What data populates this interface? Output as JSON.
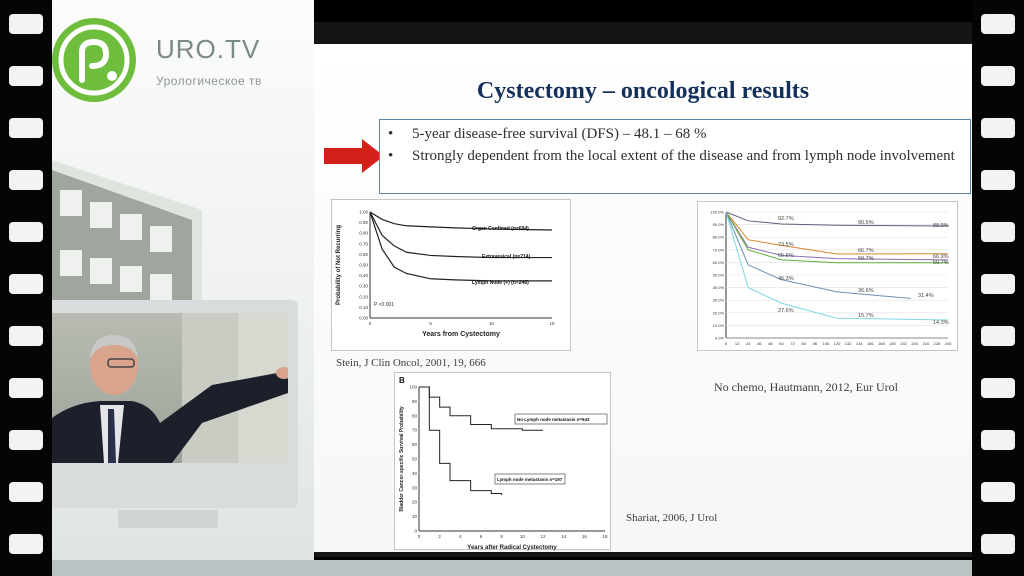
{
  "brand": {
    "name": "URO.TV",
    "tagline": "Урологическое тв"
  },
  "slide": {
    "title": "Cystectomy – oncological results",
    "bullets": [
      "5-year disease-free survival (DFS) – 48.1 – 68 %",
      "Strongly dependent from the local extent of the disease and from lymph node involvement"
    ],
    "bullet_symbol": "•",
    "captions": {
      "stein": "Stein, J Clin Oncol, 2001, 19, 666",
      "hautmann": "No chemo, Hautmann, 2012, Eur Urol",
      "shariat": "Shariat, 2006, J Urol"
    }
  },
  "colors": {
    "logo": "#6fbd3c",
    "title": "#15305a",
    "arrow": "#d32019",
    "box_border": "#5a86a6"
  },
  "chart_data": [
    {
      "type": "line",
      "xlabel": "Years from Cystectomy",
      "ylabel": "Probability of Not Recurring",
      "xlim": [
        0,
        15
      ],
      "ylim": [
        0,
        1.0
      ],
      "x_ticks": [
        "0",
        "5",
        "10",
        "15"
      ],
      "y_ticks": [
        "0.00",
        "0.10",
        "0.20",
        "0.30",
        "0.40",
        "0.50",
        "0.60",
        "0.70",
        "0.80",
        "0.90",
        "1.00"
      ],
      "annotation": "P <0.001",
      "series": [
        {
          "name": "Organ Confined (n=694)",
          "x": [
            0,
            1,
            2,
            3,
            5,
            7,
            10,
            15
          ],
          "y": [
            1.0,
            0.93,
            0.89,
            0.87,
            0.86,
            0.85,
            0.84,
            0.83
          ]
        },
        {
          "name": "Extravesical (n=214)",
          "x": [
            0,
            1,
            2,
            3,
            5,
            7,
            10,
            15
          ],
          "y": [
            1.0,
            0.78,
            0.68,
            0.62,
            0.59,
            0.58,
            0.57,
            0.57
          ]
        },
        {
          "name": "Lymph Node (+) (n=246)",
          "x": [
            0,
            1,
            2,
            3,
            5,
            7,
            10,
            15
          ],
          "y": [
            1.0,
            0.65,
            0.48,
            0.42,
            0.37,
            0.36,
            0.35,
            0.35
          ]
        }
      ]
    },
    {
      "type": "line",
      "x_ticks": [
        "0",
        "12",
        "24",
        "36",
        "48",
        "60",
        "72",
        "84",
        "96",
        "108",
        "120",
        "132",
        "144",
        "156",
        "168",
        "180",
        "192",
        "204",
        "216",
        "228",
        "240"
      ],
      "y_ticks": [
        "0.0%",
        "10.0%",
        "20.0%",
        "30.0%",
        "40.0%",
        "50.0%",
        "60.0%",
        "70.0%",
        "80.0%",
        "90.0%",
        "100.0%"
      ],
      "xlim": [
        0,
        240
      ],
      "ylim": [
        0,
        100
      ],
      "data_labels": [
        "92.7%",
        "90.5%",
        "88.9%",
        "73.5%",
        "66.7%",
        "66.9%",
        "65.6%",
        "59.7%",
        "59.7%",
        "46.3%",
        "36.6%",
        "31.4%",
        "27.6%",
        "15.7%",
        "14.3%"
      ],
      "series": [
        {
          "color": "#5a5f78",
          "x": [
            0,
            24,
            60,
            120,
            240
          ],
          "y": [
            100,
            93,
            90.5,
            89.5,
            88.9
          ]
        },
        {
          "color": "#d9862a",
          "x": [
            0,
            24,
            60,
            120,
            240
          ],
          "y": [
            100,
            78,
            73.5,
            66.7,
            66.9
          ]
        },
        {
          "color": "#8a6fb0",
          "x": [
            0,
            24,
            60,
            120,
            240
          ],
          "y": [
            100,
            72,
            65.6,
            63,
            62
          ]
        },
        {
          "color": "#5fae3f",
          "x": [
            0,
            24,
            60,
            120,
            240
          ],
          "y": [
            100,
            70,
            62,
            59.7,
            59.7
          ]
        },
        {
          "color": "#6c8fb3",
          "x": [
            0,
            24,
            60,
            120,
            200
          ],
          "y": [
            100,
            58,
            46.3,
            36.6,
            31.4
          ]
        },
        {
          "color": "#7fd6e8",
          "x": [
            0,
            24,
            60,
            120,
            240
          ],
          "y": [
            100,
            40,
            27.6,
            15.7,
            14.3
          ]
        }
      ]
    },
    {
      "type": "line",
      "panel_label": "B",
      "xlabel": "Years after Radical Cystectomy",
      "ylabel": "Bladder Cancer-specific Survival Probability",
      "xlim": [
        0,
        18
      ],
      "ylim": [
        0,
        100
      ],
      "x_ticks": [
        "0",
        "2",
        "4",
        "6",
        "8",
        "10",
        "12",
        "14",
        "16",
        "18"
      ],
      "y_ticks": [
        "0",
        "10",
        "20",
        "30",
        "40",
        "50",
        "60",
        "70",
        "80",
        "90",
        "100"
      ],
      "series": [
        {
          "name": "No Lymph node metastasis n=643",
          "x": [
            0,
            1,
            2,
            3,
            5,
            7,
            10,
            12
          ],
          "y": [
            100,
            93,
            86,
            80,
            74,
            71,
            70,
            70
          ]
        },
        {
          "name": "Lymph node metastasis n=197",
          "x": [
            0,
            1,
            2,
            3,
            5,
            7,
            8
          ],
          "y": [
            100,
            70,
            47,
            35,
            28,
            26,
            25
          ]
        }
      ]
    }
  ]
}
